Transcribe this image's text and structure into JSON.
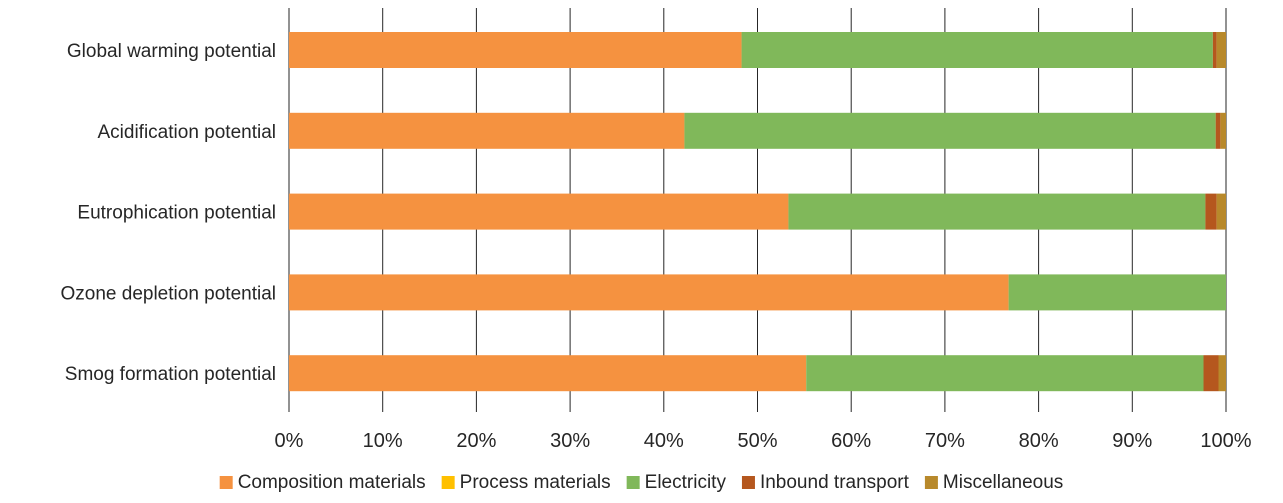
{
  "chart_data": {
    "type": "bar",
    "orientation": "horizontal",
    "stacked": "percent",
    "categories": [
      "Global warming potential",
      "Acidification potential",
      "Eutrophication potential",
      "Ozone depletion potential",
      "Smog formation potential"
    ],
    "series": [
      {
        "name": "Composition materials",
        "color": "#F59240",
        "values": [
          48.3,
          42.2,
          53.3,
          76.8,
          55.2
        ]
      },
      {
        "name": "Process materials",
        "color": "#FFC000",
        "values": [
          0.0,
          0.0,
          0.0,
          0.0,
          0.0
        ]
      },
      {
        "name": "Electricity",
        "color": "#80B85A",
        "values": [
          50.3,
          56.7,
          44.5,
          23.2,
          42.4
        ]
      },
      {
        "name": "Inbound transport",
        "color": "#B5571E",
        "values": [
          0.4,
          0.5,
          1.2,
          0.0,
          1.6
        ]
      },
      {
        "name": "Miscellaneous",
        "color": "#B8892B",
        "values": [
          1.0,
          0.6,
          1.0,
          0.0,
          0.8
        ]
      }
    ],
    "xlim": [
      0,
      100
    ],
    "xticks": [
      "0%",
      "10%",
      "20%",
      "30%",
      "40%",
      "50%",
      "60%",
      "70%",
      "80%",
      "90%",
      "100%"
    ],
    "grid": "vertical",
    "legend": "bottom"
  }
}
